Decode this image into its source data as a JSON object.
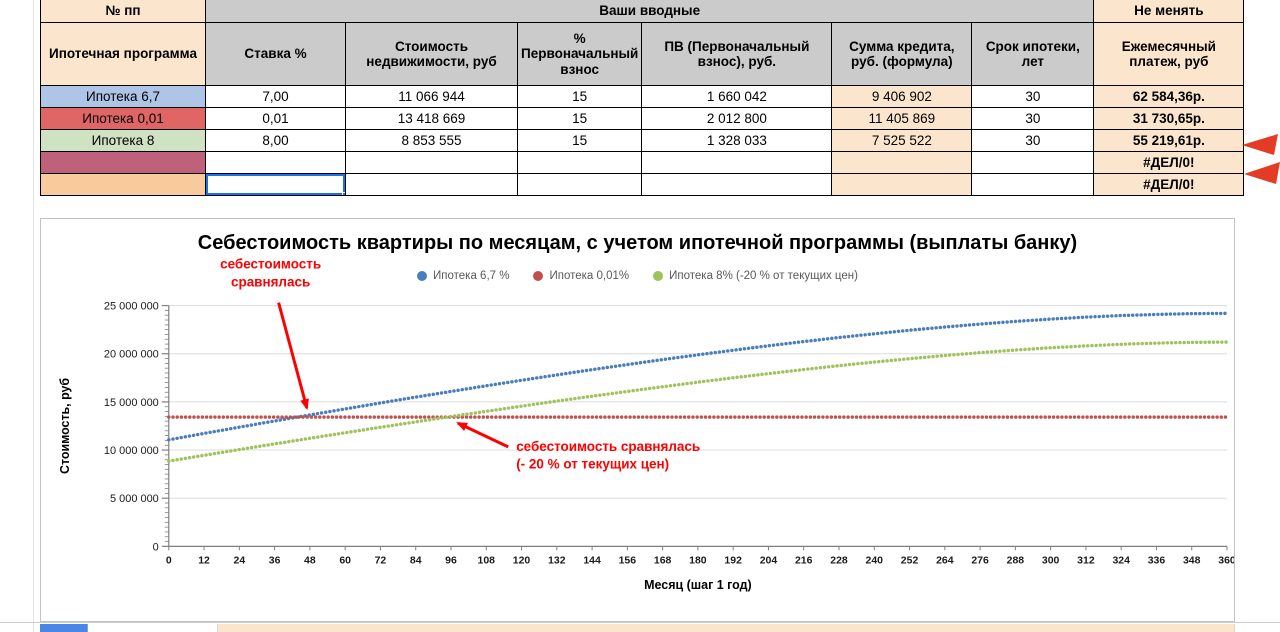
{
  "table": {
    "corner": "№ пп",
    "inputs_header": "Ваши вводные",
    "fixed_header": "Не менять",
    "columns": [
      "Ипотечная программа",
      "Ставка %",
      "Стоимость недвижимости, руб",
      "% Первоначальный взнос",
      "ПВ (Первоначальный взнос), руб.",
      "Сумма кредита, руб. (формула)",
      "Срок ипотеки, лет",
      "Ежемесячный платеж, руб"
    ],
    "rows": [
      {
        "name": "Ипотека 6,7",
        "rate": "7,00",
        "price": "11 066 944",
        "down_pct": "15",
        "down_rub": "1 660 042",
        "credit": "9 406 902",
        "term": "30",
        "payment": "62 584,36р.",
        "color": "#AFC5E7"
      },
      {
        "name": "Ипотека 0,01",
        "rate": "0,01",
        "price": "13 418 669",
        "down_pct": "15",
        "down_rub": "2 012 800",
        "credit": "11 405 869",
        "term": "30",
        "payment": "31 730,65р.",
        "color": "#E06666"
      },
      {
        "name": "Ипотека 8",
        "rate": "8,00",
        "price": "8 853 555",
        "down_pct": "15",
        "down_rub": "1 328 033",
        "credit": "7 525 522",
        "term": "30",
        "payment": "55 219,61р.",
        "color": "#CFE2C1"
      },
      {
        "name": "",
        "rate": "",
        "price": "",
        "down_pct": "",
        "down_rub": "",
        "credit": "",
        "term": "",
        "payment": "#ДЕЛ/0!",
        "color": "#C0617C"
      },
      {
        "name": "",
        "rate": "",
        "price": "",
        "down_pct": "",
        "down_rub": "",
        "credit": "",
        "term": "",
        "payment": "#ДЕЛ/0!",
        "color": "#F9CB9C"
      }
    ],
    "selection": {
      "row_index": 4,
      "column": "Ставка %"
    },
    "error_value": "#ДЕЛ/0!"
  },
  "theme": {
    "header_gray": "#CBCBCB",
    "tan": "#FCE5CD",
    "header_blue_text": "#2E75B6",
    "header_orange_text": "#E8823C",
    "selection_blue": "#1a73e8",
    "marker_red": "#E33B24",
    "bottom_row_blue": "#4A86E8"
  },
  "chart_data": {
    "type": "line",
    "title": "Себестоимость квартиры по месяцам, с учетом ипотечной программы (выплаты банку)",
    "xlabel": "Месяц (шаг 1 год)",
    "ylabel": "Стоимость, руб",
    "xlim": [
      0,
      360
    ],
    "ylim": [
      0,
      25000000
    ],
    "grid": "horizontal",
    "legend_position": "top-center",
    "annotation_color": "#FF0000",
    "y_minor_step": 500000,
    "y_major_step": 5000000,
    "yticks": [
      0,
      5000000,
      10000000,
      15000000,
      20000000,
      25000000
    ],
    "x": [
      0,
      12,
      24,
      36,
      48,
      60,
      72,
      84,
      96,
      108,
      120,
      132,
      144,
      156,
      168,
      180,
      192,
      204,
      216,
      228,
      240,
      252,
      264,
      276,
      288,
      300,
      312,
      324,
      336,
      348,
      360
    ],
    "series": [
      {
        "name": "Ипотека 6,7 %",
        "color": "#4A7EBB",
        "values": [
          11066944,
          11722390,
          12370943,
          13012077,
          13645266,
          14269953,
          14885491,
          15491234,
          16086470,
          16670484,
          17242415,
          17801365,
          18346428,
          18876608,
          19390827,
          19887920,
          20366655,
          20825714,
          21263661,
          21678960,
          22070009,
          22435070,
          22772205,
          23079417,
          23354529,
          23595211,
          23798970,
          23963192,
          24085037,
          24161406,
          24189062
        ]
      },
      {
        "name": "Ипотека 0,01%",
        "color": "#C0504D",
        "values": [
          13418669,
          13418669,
          13418669,
          13418669,
          13418669,
          13418669,
          13418669,
          13418669,
          13418669,
          13418669,
          13418669,
          13418669,
          13418669,
          13418669,
          13418669,
          13418669,
          13418669,
          13418669,
          13418669,
          13418669,
          13418669,
          13418669,
          13418669,
          13418669,
          13418669,
          13418669,
          13418669,
          13418669,
          13418669,
          13418669,
          13418669
        ]
      },
      {
        "name": "Ипотека 8% (-20 % от текущих цен)",
        "color": "#9FC25D",
        "values": [
          8853555,
          9453324,
          10047875,
          10636775,
          11219556,
          11795710,
          12364684,
          12925886,
          13478671,
          14022336,
          14556115,
          15079202,
          15590713,
          16089692,
          16575081,
          17045768,
          17500513,
          17938020,
          18356809,
          18755386,
          19132017,
          19484936,
          19812147,
          20111483,
          20380694,
          20617275,
          20818462,
          20981364,
          21102797,
          21179258,
          21207086
        ]
      }
    ],
    "annotations": [
      {
        "lines": [
          "себестоимость",
          "сравнялась"
        ],
        "target_month": 48,
        "target_value": 13418669
      },
      {
        "lines": [
          "себестоимость сравнялась",
          "(- 20 % от текущих цен)"
        ],
        "target_month": 96,
        "target_value": 13418669
      }
    ]
  }
}
